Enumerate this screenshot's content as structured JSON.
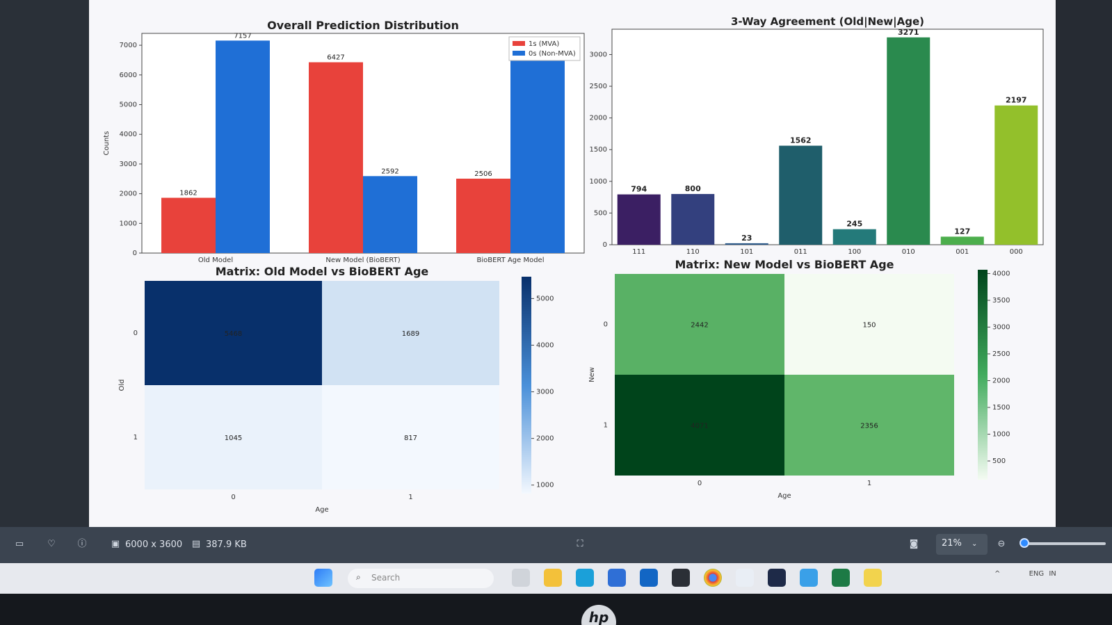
{
  "charts": {
    "chart_data": [
      {
        "type": "bar",
        "title": "Overall Prediction Distribution",
        "ylabel": "Counts",
        "categories": [
          "Old Model",
          "New Model (BioBERT)",
          "BioBERT Age Model"
        ],
        "series": [
          {
            "name": "1s (MVA)",
            "values": [
              1862,
              6427,
              2506
            ],
            "color": "#e8423b"
          },
          {
            "name": "0s (Non-MVA)",
            "values": [
              7157,
              2592,
              6513
            ],
            "color": "#1f6fd6"
          }
        ],
        "value_labels": [
          [
            "1862",
            "7157"
          ],
          [
            "6427",
            "2592"
          ],
          [
            "2506",
            ""
          ]
        ],
        "ylim": [
          0,
          7400
        ],
        "yticks": [
          "0",
          "1000",
          "2000",
          "3000",
          "4000",
          "5000",
          "6000",
          "7000"
        ],
        "legend": "top-right"
      },
      {
        "type": "bar",
        "title": "3-Way Agreement (Old|New|Age)",
        "categories": [
          "111",
          "110",
          "101",
          "011",
          "100",
          "010",
          "001",
          "000"
        ],
        "values": [
          794,
          800,
          23,
          1562,
          245,
          3271,
          127,
          2197
        ],
        "colors": [
          "#3b1f63",
          "#33407e",
          "#2c5a8a",
          "#1f5e6b",
          "#247a7a",
          "#2a8a4e",
          "#4cae4c",
          "#93c02b"
        ],
        "ylim": [
          0,
          3400
        ],
        "yticks": [
          "0",
          "500",
          "1000",
          "1500",
          "2000",
          "2500",
          "3000"
        ]
      },
      {
        "type": "heatmap",
        "title": "Matrix: Old Model vs BioBERT Age",
        "xlabel": "Age",
        "ylabel": "Old",
        "xticks": [
          "0",
          "1"
        ],
        "yticks": [
          "0",
          "1"
        ],
        "values": [
          [
            5468,
            1689
          ],
          [
            1045,
            817
          ]
        ],
        "cell_labels": [
          [
            "5468",
            "1689"
          ],
          [
            "1045",
            "817"
          ]
        ],
        "colorbar_ticks": [
          "5000",
          "4000",
          "3000",
          "2000",
          "1000"
        ],
        "colorbar_range": [
          817,
          5468
        ],
        "colormap": "Blues"
      },
      {
        "type": "heatmap",
        "title": "Matrix: New Model vs BioBERT Age",
        "xlabel": "Age",
        "ylabel": "New",
        "xticks": [
          "0",
          "1"
        ],
        "yticks": [
          "0",
          "1"
        ],
        "values": [
          [
            2442,
            150
          ],
          [
            4071,
            2356
          ]
        ],
        "cell_labels": [
          [
            "2442",
            "150"
          ],
          [
            "4071",
            "2356"
          ]
        ],
        "colorbar_ticks": [
          "4000",
          "3500",
          "3000",
          "2500",
          "2000",
          "1500",
          "1000",
          "500"
        ],
        "colorbar_range": [
          150,
          4071
        ],
        "colormap": "Greens"
      }
    ]
  },
  "viewer": {
    "dimensions": "6000 x 3600",
    "file_size": "387.9 KB",
    "zoom": "21%"
  },
  "taskbar": {
    "search_placeholder": "Search",
    "tray_lang": "ENG",
    "tray_region": "IN"
  },
  "icons": {
    "viewer_left": [
      "sidebar-icon",
      "heart-icon",
      "info-icon",
      "image-dimension-icon",
      "save-icon"
    ],
    "viewer_center": "fit-screen-icon",
    "viewer_right": [
      "camera-icon",
      "zoom-out-icon"
    ],
    "taskbar_apps": [
      "windows-start-icon",
      "task-view-icon",
      "file-explorer-icon",
      "edge-icon",
      "store-icon",
      "outlook-icon",
      "terminal-icon",
      "chrome-icon",
      "snipping-tool-icon",
      "app-a-icon",
      "photos-icon",
      "excel-icon",
      "notes-icon"
    ]
  }
}
